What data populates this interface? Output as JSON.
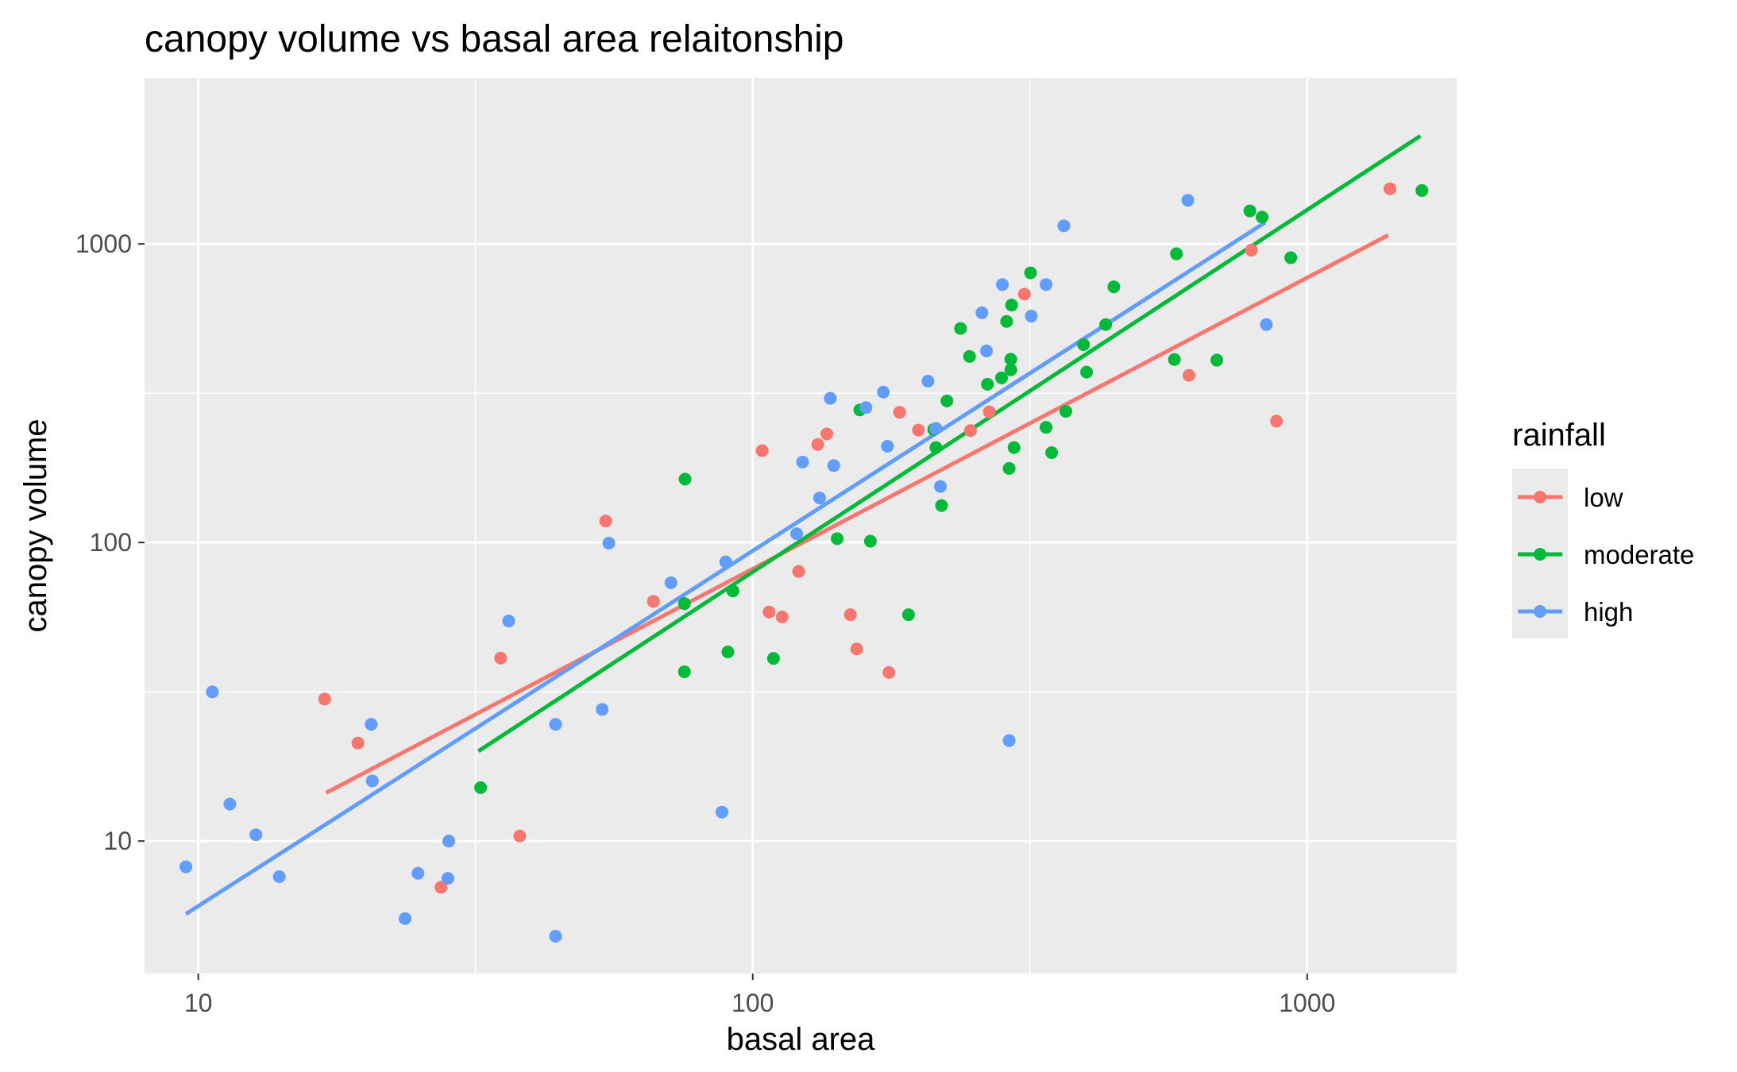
{
  "chart_data": {
    "type": "scatter",
    "title": "canopy volume vs basal area relaitonship",
    "xlabel": "basal area",
    "ylabel": "canopy volume",
    "x_scale": "log10",
    "y_scale": "log10",
    "xlim": [
      8,
      1860
    ],
    "ylim": [
      3.6,
      3600
    ],
    "x_ticks": [
      {
        "value": 10,
        "label": "10"
      },
      {
        "value": 100,
        "label": "100"
      },
      {
        "value": 1000,
        "label": "1000"
      }
    ],
    "y_ticks": [
      {
        "value": 10,
        "label": "10"
      },
      {
        "value": 100,
        "label": "100"
      },
      {
        "value": 1000,
        "label": "1000"
      }
    ],
    "x_minor": [
      31.6,
      316
    ],
    "y_minor": [
      31.6,
      316
    ],
    "grid": true,
    "panel_color": "#ebebeb",
    "legend": {
      "title": "rainfall",
      "position": "right"
    },
    "series": [
      {
        "name": "low",
        "color": "#f8766d",
        "points": [
          [
            16.9,
            29.9
          ],
          [
            19.4,
            21.3
          ],
          [
            27.4,
            7.0
          ],
          [
            35.1,
            41.0
          ],
          [
            38.0,
            10.4
          ],
          [
            54.3,
            118
          ],
          [
            66.2,
            63.5
          ],
          [
            104,
            203
          ],
          [
            107,
            58.5
          ],
          [
            113,
            56.3
          ],
          [
            121,
            80.0
          ],
          [
            131,
            213
          ],
          [
            136,
            231
          ],
          [
            150,
            57.3
          ],
          [
            154,
            44.0
          ],
          [
            176,
            36.7
          ],
          [
            184,
            273
          ],
          [
            199,
            238
          ],
          [
            247,
            237
          ],
          [
            267,
            274
          ],
          [
            309,
            679
          ],
          [
            612,
            363
          ],
          [
            793,
            953
          ],
          [
            880,
            255
          ],
          [
            1410,
            1530
          ]
        ],
        "fit": [
          [
            17,
            14.5
          ],
          [
            1400,
            1070
          ]
        ]
      },
      {
        "name": "moderate",
        "color": "#00ba38",
        "points": [
          [
            32.3,
            15.1
          ],
          [
            75.3,
            36.9
          ],
          [
            75.3,
            62.4
          ],
          [
            75.5,
            163
          ],
          [
            90.2,
            43.0
          ],
          [
            92.1,
            68.8
          ],
          [
            109,
            40.9
          ],
          [
            142,
            103
          ],
          [
            156,
            278
          ],
          [
            163,
            101
          ],
          [
            191,
            57.3
          ],
          [
            212,
            239
          ],
          [
            214,
            208
          ],
          [
            219,
            133
          ],
          [
            224,
            298
          ],
          [
            237,
            521
          ],
          [
            246,
            420
          ],
          [
            265,
            339
          ],
          [
            281,
            356
          ],
          [
            287,
            550
          ],
          [
            290,
            177
          ],
          [
            292,
            379
          ],
          [
            292,
            411
          ],
          [
            293,
            624
          ],
          [
            296,
            208
          ],
          [
            317,
            800
          ],
          [
            338,
            243
          ],
          [
            346,
            200
          ],
          [
            367,
            275
          ],
          [
            395,
            460
          ],
          [
            400,
            372
          ],
          [
            433,
            537
          ],
          [
            448,
            718
          ],
          [
            576,
            410
          ],
          [
            581,
            927
          ],
          [
            687,
            408
          ],
          [
            788,
            1290
          ],
          [
            829,
            1230
          ],
          [
            934,
            899
          ],
          [
            1610,
            1510
          ]
        ],
        "fit": [
          [
            32,
            20
          ],
          [
            1600,
            2300
          ]
        ]
      },
      {
        "name": "high",
        "color": "#619cff",
        "points": [
          [
            9.5,
            8.2
          ],
          [
            10.6,
            31.6
          ],
          [
            11.4,
            13.3
          ],
          [
            12.7,
            10.5
          ],
          [
            14.0,
            7.6
          ],
          [
            20.5,
            24.6
          ],
          [
            20.6,
            15.9
          ],
          [
            23.6,
            5.5
          ],
          [
            24.9,
            7.8
          ],
          [
            28.2,
            7.5
          ],
          [
            28.3,
            10.0
          ],
          [
            36.3,
            54.6
          ],
          [
            44.1,
            24.6
          ],
          [
            44.1,
            4.8
          ],
          [
            53.5,
            27.6
          ],
          [
            55.0,
            99.5
          ],
          [
            71.2,
            73.3
          ],
          [
            88.0,
            12.5
          ],
          [
            89.4,
            86.1
          ],
          [
            120,
            107
          ],
          [
            123,
            186
          ],
          [
            132,
            141
          ],
          [
            138,
            304
          ],
          [
            140,
            181
          ],
          [
            160,
            283
          ],
          [
            172,
            319
          ],
          [
            175,
            210
          ],
          [
            207,
            347
          ],
          [
            214,
            241
          ],
          [
            218,
            154
          ],
          [
            259,
            588
          ],
          [
            264,
            438
          ],
          [
            282,
            731
          ],
          [
            290,
            21.7
          ],
          [
            318,
            573
          ],
          [
            338,
            731
          ],
          [
            364,
            1150
          ],
          [
            609,
            1400
          ],
          [
            844,
            537
          ]
        ],
        "fit": [
          [
            9.5,
            5.7
          ],
          [
            840,
            1180
          ]
        ]
      }
    ]
  }
}
